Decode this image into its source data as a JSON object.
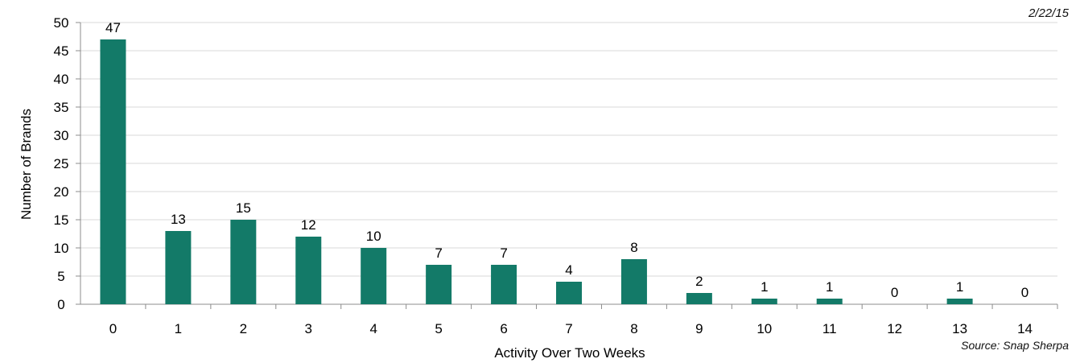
{
  "date_label": "2/22/15",
  "source_label": "Source: Snap Sherpa",
  "chart_data": {
    "type": "bar",
    "title": "",
    "xlabel": "Activity Over Two Weeks",
    "ylabel": "Number of Brands",
    "categories": [
      "0",
      "1",
      "2",
      "3",
      "4",
      "5",
      "6",
      "7",
      "8",
      "9",
      "10",
      "11",
      "12",
      "13",
      "14"
    ],
    "values": [
      47,
      13,
      15,
      12,
      10,
      7,
      7,
      4,
      8,
      2,
      1,
      1,
      0,
      1,
      0
    ],
    "data_labels": [
      "47",
      "13",
      "15",
      "12",
      "10",
      "7",
      "7",
      "4",
      "8",
      "2",
      "1",
      "1",
      "0",
      "1",
      "0"
    ],
    "ylim": [
      0,
      50
    ],
    "yticks": [
      "0",
      "5",
      "10",
      "15",
      "20",
      "25",
      "30",
      "35",
      "40",
      "45",
      "50"
    ],
    "grid": true,
    "legend": "none",
    "colors": {
      "bar": "#137a68",
      "grid": "#d9d9d9",
      "axis": "#8c8c8c"
    }
  }
}
